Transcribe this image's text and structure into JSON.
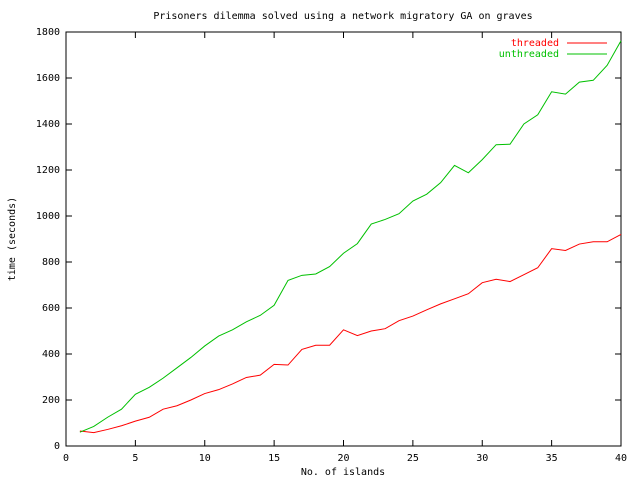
{
  "chart_data": {
    "type": "line",
    "title": "Prisoners dilemma solved using a network migratory GA on graves",
    "x_label": "No. of islands",
    "y_label": "time (seconds)",
    "x": [
      1,
      2,
      3,
      4,
      5,
      6,
      7,
      8,
      9,
      10,
      11,
      12,
      13,
      14,
      15,
      16,
      17,
      18,
      19,
      20,
      21,
      22,
      23,
      24,
      25,
      26,
      27,
      28,
      29,
      30,
      31,
      32,
      33,
      34,
      35,
      36,
      37,
      38,
      39,
      40
    ],
    "series": [
      {
        "name": "threaded",
        "color": "#ff0000",
        "values": [
          65,
          58,
          72,
          88,
          108,
          125,
          160,
          175,
          200,
          228,
          245,
          270,
          298,
          308,
          355,
          352,
          420,
          438,
          438,
          505,
          480,
          500,
          510,
          545,
          565,
          592,
          618,
          640,
          662,
          710,
          725,
          715,
          745,
          775,
          858,
          850,
          878,
          888,
          888,
          920
        ]
      },
      {
        "name": "unthreaded",
        "color": "#00c000",
        "values": [
          60,
          85,
          125,
          160,
          225,
          255,
          295,
          340,
          385,
          435,
          478,
          505,
          540,
          568,
          612,
          720,
          742,
          748,
          780,
          838,
          880,
          965,
          985,
          1010,
          1065,
          1095,
          1145,
          1220,
          1188,
          1245,
          1310,
          1312,
          1400,
          1440,
          1540,
          1530,
          1582,
          1590,
          1655,
          1762
        ]
      }
    ],
    "xlim": [
      0,
      40
    ],
    "xticks": [
      0,
      5,
      10,
      15,
      20,
      25,
      30,
      35,
      40
    ],
    "ylim": [
      0,
      1800
    ],
    "yticks": [
      0,
      200,
      400,
      600,
      800,
      1000,
      1200,
      1400,
      1600,
      1800
    ],
    "grid": false,
    "legend": "top-right"
  }
}
